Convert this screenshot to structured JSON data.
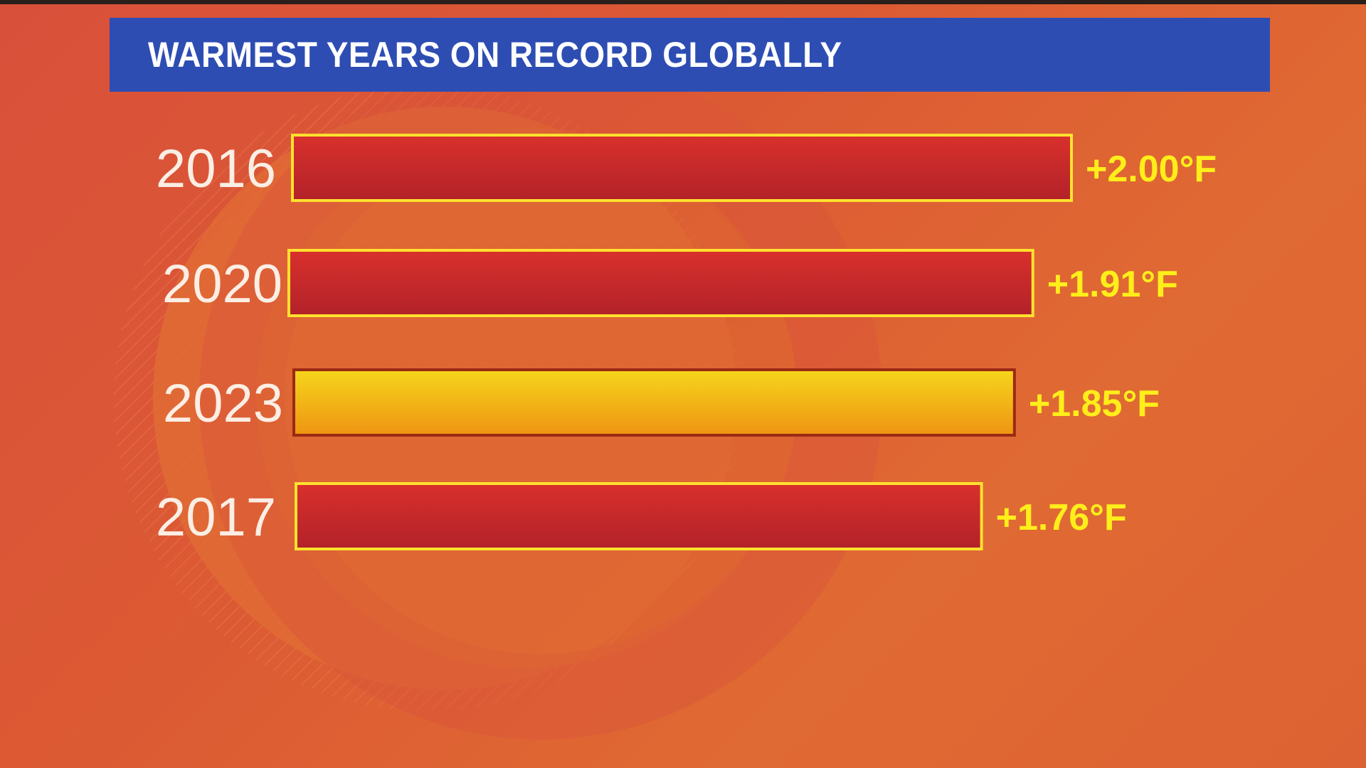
{
  "title": "WARMEST YEARS ON RECORD GLOBALLY",
  "chart_data": {
    "type": "bar",
    "orientation": "horizontal",
    "title": "WARMEST YEARS ON RECORD GLOBALLY",
    "categories": [
      "2016",
      "2020",
      "2023",
      "2017"
    ],
    "values": [
      2.0,
      1.91,
      1.85,
      1.76
    ],
    "value_labels": [
      "+2.00°F",
      "+1.91°F",
      "+1.85°F",
      "+1.76°F"
    ],
    "highlighted_category": "2023",
    "colors": {
      "bar": "#c9282a",
      "bar_outline": "#ffe12e",
      "highlight_bar": "#f5c518",
      "highlight_outline": "#9a2a14",
      "value_text": "#ffee1a",
      "year_text": "#fbeee4",
      "title_banner": "#2e4db3"
    },
    "grid": false,
    "legend": "none"
  }
}
